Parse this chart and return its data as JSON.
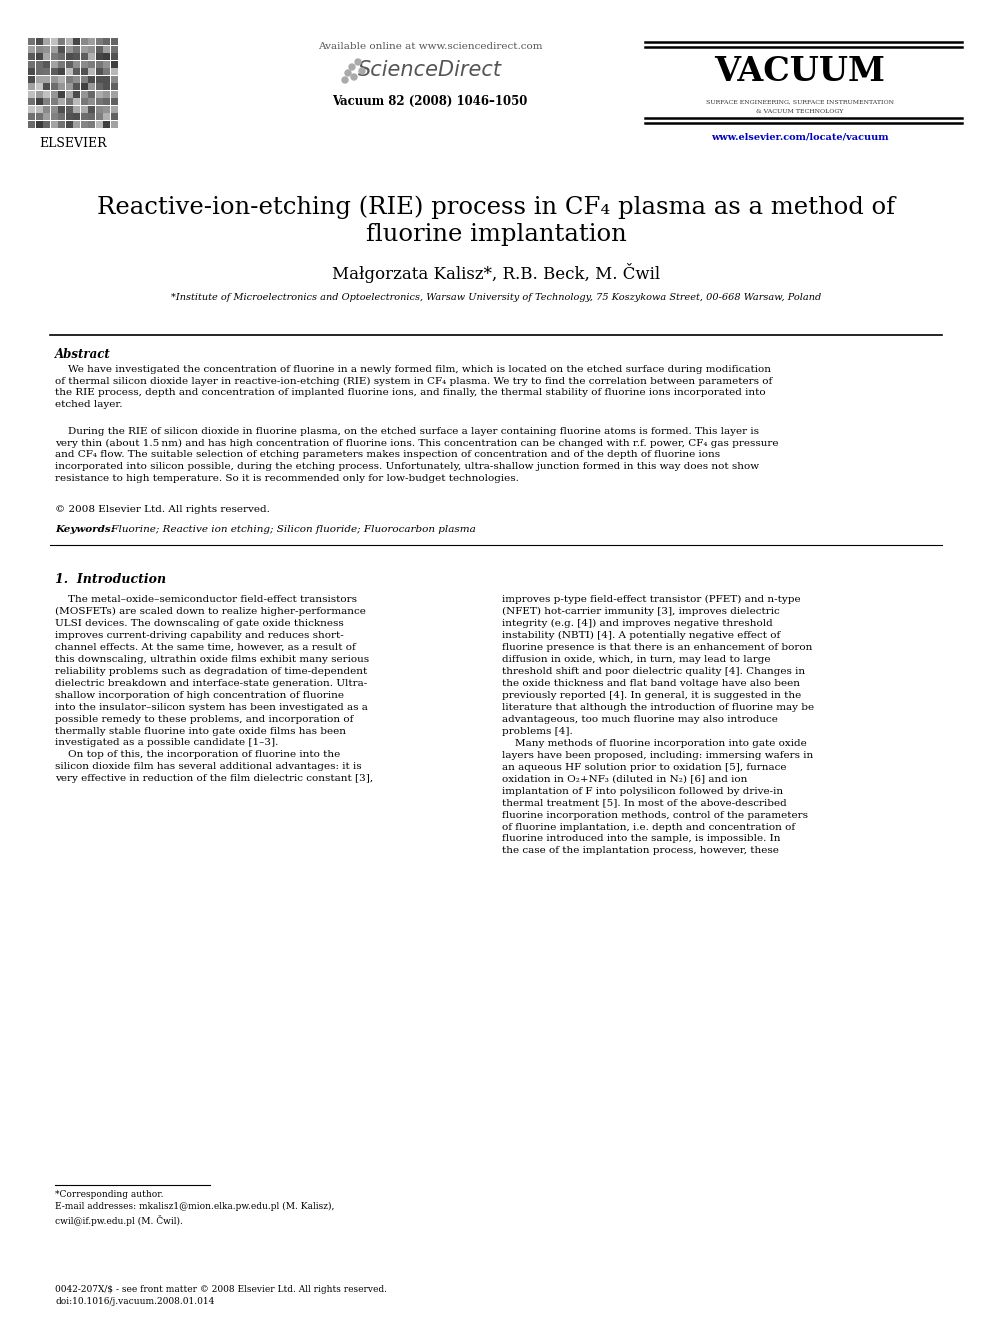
{
  "bg_color": "#ffffff",
  "journal_header": "Available online at www.sciencedirect.com",
  "journal_name": "ScienceDirect",
  "journal_volume": "Vacuum 82 (2008) 1046–1050",
  "vacuum_title": "VACUUM",
  "vacuum_subtitle_1": "SURFACE ENGINEERING, SURFACE INSTRUMENTATION",
  "vacuum_subtitle_2": "& VACUUM TECHNOLOGY",
  "url": "www.elsevier.com/locate/vacuum",
  "elsevier_text": "ELSEVIER",
  "title_line1": "Reactive-ion-etching (RIE) process in CF₄ plasma as a method of",
  "title_line2": "fluorine implantation",
  "authors": "Małgorzata Kalisz*, R.B. Beck, M. Čwil",
  "affiliation": "*Institute of Microelectronics and Optoelectronics, Warsaw University of Technology, 75 Koszykowa Street, 00-668 Warsaw, Poland",
  "abstract_title": "Abstract",
  "abstract_para1": "    We have investigated the concentration of fluorine in a newly formed film, which is located on the etched surface during modification of thermal silicon dioxide layer in reactive-ion-etching (RIE) system in CF₄ plasma. We try to find the correlation between parameters of the RIE process, depth and concentration of implanted fluorine ions, and finally, the thermal stability of fluorine ions incorporated into etched layer.",
  "abstract_para2": "    During the RIE of silicon dioxide in fluorine plasma, on the etched surface a layer containing fluorine atoms is formed. This layer is very thin (about 1.5 nm) and has high concentration of fluorine ions. This concentration can be changed with r.f. power, CF₄ gas pressure and CF₄ flow. The suitable selection of etching parameters makes inspection of concentration and of the depth of fluorine ions incorporated into silicon possible, during the etching process. Unfortunately, ultra-shallow junction formed in this way does not show resistance to high temperature. So it is recommended only for low-budget technologies.",
  "abstract_copyright": "© 2008 Elsevier Ltd. All rights reserved.",
  "keywords_label": "Keywords:",
  "keywords_text": " Fluorine; Reactive ion etching; Silicon fluoride; Fluorocarbon plasma",
  "section1_title": "1.  Introduction",
  "intro_left_1": "    The metal–oxide–semiconductor field-effect transistors (MOSFETs) are scaled down to realize higher-performance ULSI devices. The downscaling of gate oxide thickness improves current-driving capability and reduces short-channel effects. At the same time, however, as a result of this downscaling, ultrathin oxide films exhibit many serious reliability problems such as degradation of time-dependent dielectric breakdown and interface-state generation. Ultra-shallow incorporation of high concentration of fluorine into the insulator–silicon system has been investigated as a possible remedy to these problems, and incorporation of thermally stable fluorine into gate oxide films has been investigated as a possible candidate [1–3].",
  "intro_left_2": "    On top of this, the incorporation of fluorine into the silicon dioxide film has several additional advantages: it is very effective in reduction of the film dielectric constant [3],",
  "intro_right_1": "improves p-type field-effect transistor (PFET) and n-type (NFET) hot-carrier immunity [3], improves dielectric integrity (e.g. [4]) and improves negative threshold instability (NBTI) [4]. A potentially negative effect of fluorine presence is that there is an enhancement of boron diffusion in oxide, which, in turn, may lead to large threshold shift and poor dielectric quality [4]. Changes in the oxide thickness and flat band voltage have also been previously reported [4]. In general, it is suggested in the literature that although the introduction of fluorine may be advantageous, too much fluorine may also introduce problems [4].",
  "intro_right_2": "    Many methods of fluorine incorporation into gate oxide layers have been proposed, including: immersing wafers in an aqueous HF solution prior to oxidation [5], furnace oxidation in O₂+NF₃ (diluted in N₂) [6] and ion implantation of F into polysilicon followed by drive-in thermal treatment [5]. In most of the above-described fluorine incorporation methods, control of the parameters of fluorine implantation, i.e. depth and concentration of fluorine introduced into the sample, is impossible. In the case of the implantation process, however, these",
  "footnote_text": "*Corresponding author.\nE-mail addresses: mkalisz1@mion.elka.pw.edu.pl (M. Kalisz),\ncwil@if.pw.edu.pl (M. Čwil).",
  "footer_text": "0042-207X/$ - see front matter © 2008 Elsevier Ltd. All rights reserved.\ndoi:10.1016/j.vacuum.2008.01.014"
}
